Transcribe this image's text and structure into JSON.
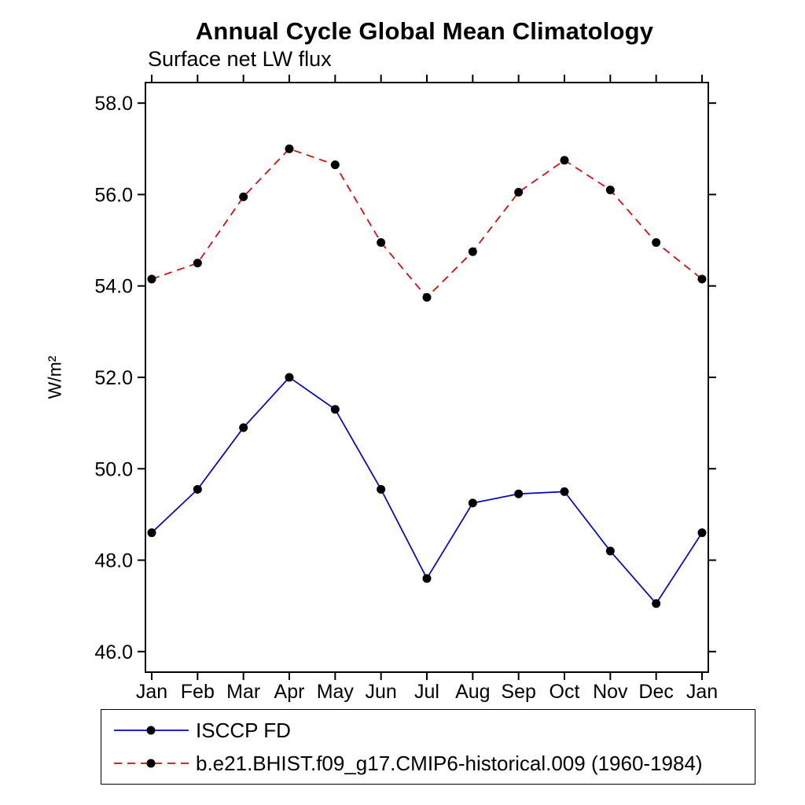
{
  "chart_data": {
    "type": "line",
    "title": "Annual Cycle Global Mean Climatology",
    "subtitle": "Surface net LW flux",
    "ylabel": "W/m²",
    "xlabel": "",
    "categories": [
      "Jan",
      "Feb",
      "Mar",
      "Apr",
      "May",
      "Jun",
      "Jul",
      "Aug",
      "Sep",
      "Oct",
      "Nov",
      "Dec",
      "Jan"
    ],
    "ylim": [
      46.0,
      58.0
    ],
    "ytick_step": 2.0,
    "ytick_labels": [
      "46.0",
      "48.0",
      "50.0",
      "52.0",
      "54.0",
      "56.0",
      "58.0"
    ],
    "grid": false,
    "legend_position": "bottom",
    "frame_color": "#000000",
    "marker": "filled-circle",
    "marker_color": "#000000",
    "series": [
      {
        "name": "ISCCP FD",
        "color": "#0000cd",
        "style": "solid",
        "values": [
          48.6,
          49.55,
          50.9,
          52.0,
          51.3,
          49.55,
          47.6,
          49.25,
          49.45,
          49.5,
          48.2,
          47.05,
          48.6
        ]
      },
      {
        "name": "b.e21.BHIST.f09_g17.CMIP6-historical.009 (1960-1984)",
        "color": "#e00000",
        "style": "dashed",
        "values": [
          54.15,
          54.5,
          55.95,
          57.0,
          56.65,
          54.95,
          53.75,
          54.75,
          56.05,
          56.75,
          56.1,
          54.95,
          54.15
        ]
      }
    ]
  }
}
